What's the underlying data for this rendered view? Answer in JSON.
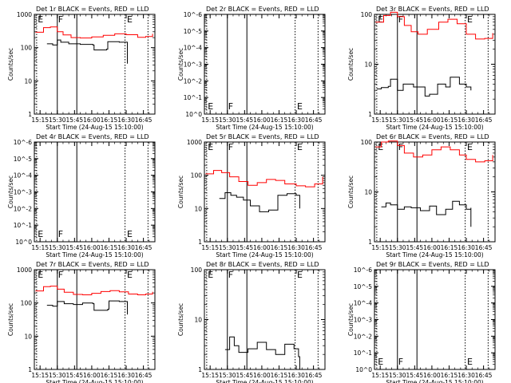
{
  "chart_data": [
    {
      "type": "line",
      "title": "Det 1r BLACK = Events, RED = LLD",
      "xlabel": "Start Time (24-Aug-15 15:10:00)",
      "ylabel": "Counts/sec",
      "x_ticks": [
        "15:15",
        "15:30",
        "15:45",
        "16:00",
        "16:15",
        "16:30",
        "16:45"
      ],
      "y_ticks": [
        "1",
        "10",
        "100",
        "1000"
      ],
      "log_y": true,
      "event_markers": [
        {
          "label": "E",
          "time": "15:15"
        },
        {
          "label": "F",
          "time": "15:30"
        },
        {
          "label": "E",
          "time": "16:30"
        }
      ],
      "series": [
        {
          "color": "#ff0000",
          "points": [
            [
              "15:11",
              290
            ],
            [
              "15:18",
              400
            ],
            [
              "15:24",
              420
            ],
            [
              "15:30",
              300
            ],
            [
              "15:35",
              240
            ],
            [
              "15:42",
              200
            ],
            [
              "15:50",
              195
            ],
            [
              "16:00",
              210
            ],
            [
              "16:10",
              235
            ],
            [
              "16:20",
              260
            ],
            [
              "16:30",
              245
            ],
            [
              "16:40",
              205
            ],
            [
              "16:47",
              215
            ],
            [
              "16:53",
              260
            ]
          ]
        },
        {
          "color": "#000000",
          "points": [
            [
              "15:21",
              130
            ],
            [
              "15:26",
              120
            ],
            [
              "15:30",
              170
            ],
            [
              "15:33",
              145
            ],
            [
              "15:40",
              130
            ],
            [
              "15:50",
              125
            ],
            [
              "16:01",
              120
            ],
            [
              "16:02",
              85
            ],
            [
              "16:13",
              90
            ],
            [
              "16:14",
              150
            ],
            [
              "16:24",
              145
            ],
            [
              "16:31",
              140
            ],
            [
              "16:31",
              33
            ]
          ]
        }
      ]
    },
    {
      "type": "line",
      "title": "Det 2r BLACK = Events, RED = LLD",
      "xlabel": "Start Time (24-Aug-15 15:10:00)",
      "ylabel": "Counts/sec",
      "x_ticks": [
        "15:15",
        "15:30",
        "15:45",
        "16:00",
        "16:15",
        "16:30",
        "16:45"
      ],
      "y_ticks": [
        "10^0",
        "10^-1",
        "10^-2",
        "10^-3",
        "10^-4",
        "10^-5",
        "10^-6"
      ],
      "log_y": true,
      "event_markers": [
        {
          "label": "E",
          "time": "15:15"
        },
        {
          "label": "F",
          "time": "15:30"
        },
        {
          "label": "E",
          "time": "16:30"
        }
      ],
      "series": []
    },
    {
      "type": "line",
      "title": "Det 3r BLACK = Events, RED = LLD",
      "xlabel": "Start Time (24-Aug-15 15:10:00)",
      "ylabel": "Counts/sec",
      "x_ticks": [
        "15:15",
        "15:30",
        "15:45",
        "16:00",
        "16:15",
        "16:30",
        "16:45"
      ],
      "y_ticks": [
        "1",
        "10",
        "100"
      ],
      "log_y": true,
      "event_markers": [
        {
          "label": "E",
          "time": "15:15"
        },
        {
          "label": "F",
          "time": "15:30"
        },
        {
          "label": "E",
          "time": "16:30"
        }
      ],
      "series": [
        {
          "color": "#ff0000",
          "points": [
            [
              "15:11",
              70
            ],
            [
              "15:18",
              95
            ],
            [
              "15:24",
              110
            ],
            [
              "15:30",
              90
            ],
            [
              "15:36",
              60
            ],
            [
              "15:42",
              45
            ],
            [
              "15:48",
              40
            ],
            [
              "15:56",
              50
            ],
            [
              "16:06",
              70
            ],
            [
              "16:14",
              80
            ],
            [
              "16:22",
              65
            ],
            [
              "16:30",
              40
            ],
            [
              "16:38",
              32
            ],
            [
              "16:46",
              33
            ],
            [
              "16:53",
              42
            ]
          ]
        },
        {
          "color": "#000000",
          "points": [
            [
              "15:12",
              3.2
            ],
            [
              "15:16",
              3.4
            ],
            [
              "15:22",
              3.6
            ],
            [
              "15:24",
              5
            ],
            [
              "15:30",
              3
            ],
            [
              "15:35",
              4
            ],
            [
              "15:44",
              3.5
            ],
            [
              "15:54",
              2.3
            ],
            [
              "15:58",
              2.5
            ],
            [
              "16:05",
              4
            ],
            [
              "16:12",
              3.5
            ],
            [
              "16:16",
              5.5
            ],
            [
              "16:24",
              4
            ],
            [
              "16:30",
              3.5
            ],
            [
              "16:34",
              3
            ]
          ]
        }
      ]
    },
    {
      "type": "line",
      "title": "Det 4r BLACK = Events, RED = LLD",
      "xlabel": "Start Time (24-Aug-15 15:10:00)",
      "ylabel": "Counts/sec",
      "x_ticks": [
        "15:15",
        "15:30",
        "15:45",
        "16:00",
        "16:15",
        "16:30",
        "16:45"
      ],
      "y_ticks": [
        "10^0",
        "10^-1",
        "10^-2",
        "10^-3",
        "10^-4",
        "10^-5",
        "10^-6"
      ],
      "log_y": true,
      "event_markers": [
        {
          "label": "E",
          "time": "15:15"
        },
        {
          "label": "F",
          "time": "15:30"
        },
        {
          "label": "E",
          "time": "16:30"
        }
      ],
      "series": []
    },
    {
      "type": "line",
      "title": "Det 5r BLACK = Events, RED = LLD",
      "xlabel": "Start Time (24-Aug-15 15:10:00)",
      "ylabel": "Counts/sec",
      "x_ticks": [
        "15:15",
        "15:30",
        "15:45",
        "16:00",
        "16:15",
        "16:30",
        "16:45"
      ],
      "y_ticks": [
        "1",
        "10",
        "100",
        "1000"
      ],
      "log_y": true,
      "event_markers": [
        {
          "label": "E",
          "time": "15:15"
        },
        {
          "label": "F",
          "time": "15:30"
        },
        {
          "label": "E",
          "time": "16:30"
        }
      ],
      "series": [
        {
          "color": "#ff0000",
          "points": [
            [
              "15:11",
              110
            ],
            [
              "15:18",
              140
            ],
            [
              "15:25",
              120
            ],
            [
              "15:32",
              90
            ],
            [
              "15:40",
              65
            ],
            [
              "15:48",
              50
            ],
            [
              "15:56",
              60
            ],
            [
              "16:04",
              75
            ],
            [
              "16:12",
              70
            ],
            [
              "16:20",
              55
            ],
            [
              "16:30",
              48
            ],
            [
              "16:38",
              45
            ],
            [
              "16:46",
              55
            ],
            [
              "16:53",
              90
            ]
          ]
        },
        {
          "color": "#000000",
          "points": [
            [
              "15:23",
              20
            ],
            [
              "15:28",
              30
            ],
            [
              "15:33",
              25
            ],
            [
              "15:38",
              22
            ],
            [
              "15:44",
              18
            ],
            [
              "15:50",
              12
            ],
            [
              "15:58",
              8
            ],
            [
              "16:06",
              9
            ],
            [
              "16:14",
              25
            ],
            [
              "16:22",
              28
            ],
            [
              "16:30",
              25
            ],
            [
              "16:33",
              20
            ],
            [
              "16:33",
              10
            ]
          ]
        }
      ]
    },
    {
      "type": "line",
      "title": "Det 6r BLACK = Events, RED = LLD",
      "xlabel": "Start Time (24-Aug-15 15:10:00)",
      "ylabel": "Counts/sec",
      "x_ticks": [
        "15:15",
        "15:30",
        "15:45",
        "16:00",
        "16:15",
        "16:30",
        "16:45"
      ],
      "y_ticks": [
        "1",
        "10",
        "100"
      ],
      "log_y": true,
      "event_markers": [
        {
          "label": "E",
          "time": "15:15"
        },
        {
          "label": "F",
          "time": "15:30"
        },
        {
          "label": "E",
          "time": "16:30"
        }
      ],
      "series": [
        {
          "color": "#ff0000",
          "points": [
            [
              "15:11",
              80
            ],
            [
              "15:16",
              100
            ],
            [
              "15:22",
              105
            ],
            [
              "15:30",
              85
            ],
            [
              "15:36",
              60
            ],
            [
              "15:44",
              50
            ],
            [
              "15:52",
              55
            ],
            [
              "16:00",
              70
            ],
            [
              "16:08",
              80
            ],
            [
              "16:16",
              70
            ],
            [
              "16:24",
              55
            ],
            [
              "16:30",
              45
            ],
            [
              "16:38",
              40
            ],
            [
              "16:46",
              42
            ],
            [
              "16:53",
              55
            ]
          ]
        },
        {
          "color": "#000000",
          "points": [
            [
              "15:16",
              5
            ],
            [
              "15:20",
              6
            ],
            [
              "15:24",
              5.5
            ],
            [
              "15:30",
              4.5
            ],
            [
              "15:36",
              5
            ],
            [
              "15:42",
              4.8
            ],
            [
              "15:50",
              4.2
            ],
            [
              "15:58",
              5.2
            ],
            [
              "16:04",
              3.5
            ],
            [
              "16:12",
              4.5
            ],
            [
              "16:18",
              6.5
            ],
            [
              "16:24",
              5.5
            ],
            [
              "16:30",
              4.5
            ],
            [
              "16:34",
              4.8
            ],
            [
              "16:34",
              2
            ]
          ]
        }
      ]
    },
    {
      "type": "line",
      "title": "Det 7r BLACK = Events, RED = LLD",
      "xlabel": "Start Time (24-Aug-15 15:10:00)",
      "ylabel": "Counts/sec",
      "x_ticks": [
        "15:15",
        "15:30",
        "15:45",
        "16:00",
        "16:15",
        "16:30",
        "16:45"
      ],
      "y_ticks": [
        "1",
        "10",
        "100",
        "1000"
      ],
      "log_y": true,
      "event_markers": [
        {
          "label": "E",
          "time": "15:15"
        },
        {
          "label": "F",
          "time": "15:30"
        },
        {
          "label": "E",
          "time": "16:30"
        }
      ],
      "series": [
        {
          "color": "#ff0000",
          "points": [
            [
              "15:11",
              230
            ],
            [
              "15:18",
              310
            ],
            [
              "15:24",
              320
            ],
            [
              "15:30",
              260
            ],
            [
              "15:36",
              210
            ],
            [
              "15:44",
              180
            ],
            [
              "15:52",
              175
            ],
            [
              "16:00",
              195
            ],
            [
              "16:08",
              220
            ],
            [
              "16:16",
              235
            ],
            [
              "16:24",
              215
            ],
            [
              "16:32",
              185
            ],
            [
              "16:40",
              175
            ],
            [
              "16:47",
              185
            ],
            [
              "16:53",
              215
            ]
          ]
        },
        {
          "color": "#000000",
          "points": [
            [
              "15:21",
              85
            ],
            [
              "15:26",
              80
            ],
            [
              "15:30",
              110
            ],
            [
              "15:36",
              95
            ],
            [
              "15:44",
              90
            ],
            [
              "15:52",
              100
            ],
            [
              "16:01",
              95
            ],
            [
              "16:02",
              60
            ],
            [
              "16:14",
              65
            ],
            [
              "16:15",
              115
            ],
            [
              "16:24",
              110
            ],
            [
              "16:31",
              105
            ],
            [
              "16:31",
              45
            ]
          ]
        }
      ]
    },
    {
      "type": "line",
      "title": "Det 8r BLACK = Events, RED = LLD",
      "xlabel": "Start Time (24-Aug-15 15:10:00)",
      "ylabel": "Counts/sec",
      "x_ticks": [
        "15:15",
        "15:30",
        "15:45",
        "16:00",
        "16:15",
        "16:30",
        "16:45"
      ],
      "y_ticks": [
        "1",
        "10",
        "100"
      ],
      "log_y": true,
      "event_markers": [
        {
          "label": "E",
          "time": "15:15"
        },
        {
          "label": "F",
          "time": "15:30"
        },
        {
          "label": "E",
          "time": "16:30"
        }
      ],
      "series": [
        {
          "color": "#000000",
          "points": [
            [
              "15:28",
              2.5
            ],
            [
              "15:32",
              4.5
            ],
            [
              "15:36",
              3
            ],
            [
              "15:40",
              2.2
            ],
            [
              "15:48",
              2.6
            ],
            [
              "15:56",
              3.5
            ],
            [
              "16:04",
              2.5
            ],
            [
              "16:12",
              2
            ],
            [
              "16:20",
              3.2
            ],
            [
              "16:28",
              2.6
            ],
            [
              "16:32",
              1.8
            ],
            [
              "16:33",
              1
            ]
          ]
        }
      ]
    },
    {
      "type": "line",
      "title": "Det 9r BLACK = Events, RED = LLD",
      "xlabel": "Start Time (24-Aug-15 15:10:00)",
      "ylabel": "Counts/sec",
      "x_ticks": [
        "15:15",
        "15:30",
        "15:45",
        "16:00",
        "16:15",
        "16:30",
        "16:45"
      ],
      "y_ticks": [
        "10^0",
        "10^-1",
        "10^-2",
        "10^-3",
        "10^-4",
        "10^-5",
        "10^-6"
      ],
      "log_y": true,
      "event_markers": [
        {
          "label": "E",
          "time": "15:15"
        },
        {
          "label": "F",
          "time": "15:30"
        },
        {
          "label": "E",
          "time": "16:30"
        }
      ],
      "series": []
    }
  ]
}
